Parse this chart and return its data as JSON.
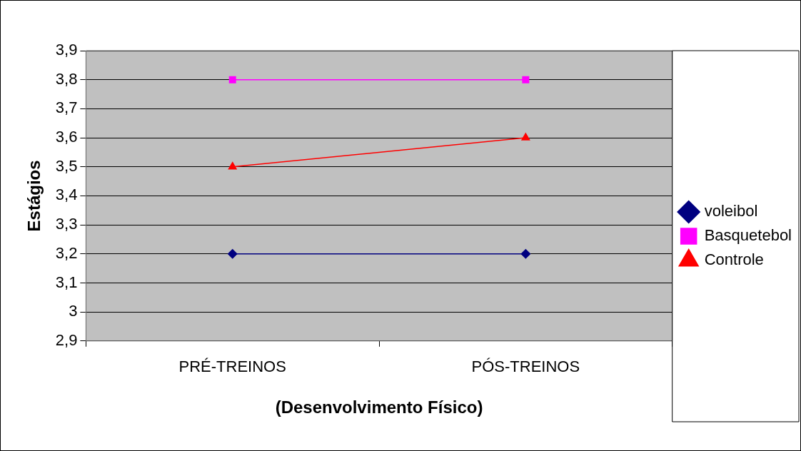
{
  "chart_data": {
    "type": "line",
    "xlabel": "(Desenvolvimento Físico)",
    "ylabel": "Estágios",
    "categories": [
      "PRÉ-TREINOS",
      "PÓS-TREINOS"
    ],
    "series": [
      {
        "name": "voleibol",
        "color": "#000080",
        "marker": "diamond",
        "values": [
          3.2,
          3.2
        ]
      },
      {
        "name": "Basquetebol",
        "color": "#ff00ff",
        "marker": "square",
        "values": [
          3.8,
          3.8
        ]
      },
      {
        "name": "Controle",
        "color": "#ff0000",
        "marker": "triangle",
        "values": [
          3.5,
          3.6
        ]
      }
    ],
    "ylim": [
      2.9,
      3.9
    ],
    "yticks": [
      {
        "value": 2.9,
        "label": "2,9"
      },
      3,
      {
        "value": 3.1,
        "label": "3,1"
      },
      {
        "value": 3.2,
        "label": "3,2"
      },
      {
        "value": 3.3,
        "label": "3,3"
      },
      {
        "value": 3.4,
        "label": "3,4"
      },
      {
        "value": 3.5,
        "label": "3,5"
      },
      {
        "value": 3.6,
        "label": "3,6"
      },
      {
        "value": 3.7,
        "label": "3,7"
      },
      {
        "value": 3.8,
        "label": "3,8"
      },
      {
        "value": 3.9,
        "label": "3,9"
      }
    ],
    "grid": "y",
    "legend": "right",
    "line_style": "solid"
  }
}
